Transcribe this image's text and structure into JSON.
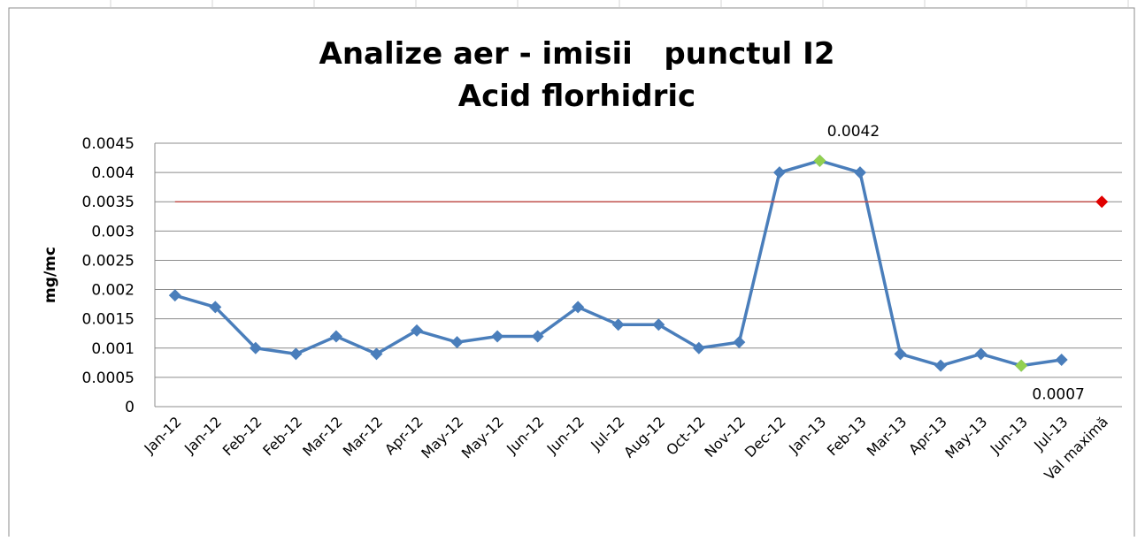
{
  "chart_data": {
    "type": "line",
    "title": "Analize aer - imisii   punctul I2",
    "subtitle": "Acid florhidric",
    "y_label": "mg/mc",
    "categories": [
      "Jan-12",
      "Jan-12",
      "Feb-12",
      "Feb-12",
      "Mar-12",
      "Mar-12",
      "Apr-12",
      "May-12",
      "May-12",
      "Jun-12",
      "Jun-12",
      "Jul-12",
      "Aug-12",
      "Oct-12",
      "Nov-12",
      "Dec-12",
      "Jan-13",
      "Feb-13",
      "Mar-13",
      "Apr-13",
      "May-13",
      "Jun-13",
      "Jul-13",
      "Val maximă"
    ],
    "series": [
      {
        "color": "#4a7ebb",
        "line": true,
        "marker": true,
        "labels": false,
        "values": [
          0.0019,
          0.0017,
          0.001,
          0.0009,
          0.0012,
          0.0009,
          0.0013,
          0.0011,
          0.0012,
          0.0012,
          0.0017,
          0.0014,
          0.0014,
          0.001,
          0.0011,
          0.004,
          0.0042,
          0.004,
          0.0009,
          0.0007,
          0.0009,
          0.0007,
          0.0008,
          null
        ]
      },
      {
        "color": "#c0504d",
        "line": true,
        "marker": false,
        "labels": false,
        "values": [
          0.0035,
          0.0035,
          0.0035,
          0.0035,
          0.0035,
          0.0035,
          0.0035,
          0.0035,
          0.0035,
          0.0035,
          0.0035,
          0.0035,
          0.0035,
          0.0035,
          0.0035,
          0.0035,
          0.0035,
          0.0035,
          0.0035,
          0.0035,
          0.0035,
          0.0035,
          0.0035,
          0.0035
        ]
      },
      {
        "color": "#e00000",
        "line": false,
        "marker": true,
        "labels": false,
        "values": [
          null,
          null,
          null,
          null,
          null,
          null,
          null,
          null,
          null,
          null,
          null,
          null,
          null,
          null,
          null,
          null,
          null,
          null,
          null,
          null,
          null,
          null,
          null,
          0.0035
        ]
      },
      {
        "color": "#92d050",
        "line": false,
        "marker": true,
        "labels": true,
        "values": [
          null,
          null,
          null,
          null,
          null,
          null,
          null,
          null,
          null,
          null,
          null,
          null,
          null,
          null,
          null,
          null,
          0.0042,
          null,
          null,
          null,
          null,
          0.0007,
          null,
          null
        ]
      }
    ],
    "ylim": [
      0,
      0.0045
    ],
    "yticks": [
      0,
      0.0005,
      0.001,
      0.0015,
      0.002,
      0.0025,
      0.003,
      0.0035,
      0.004,
      0.0045
    ],
    "grid": true
  }
}
